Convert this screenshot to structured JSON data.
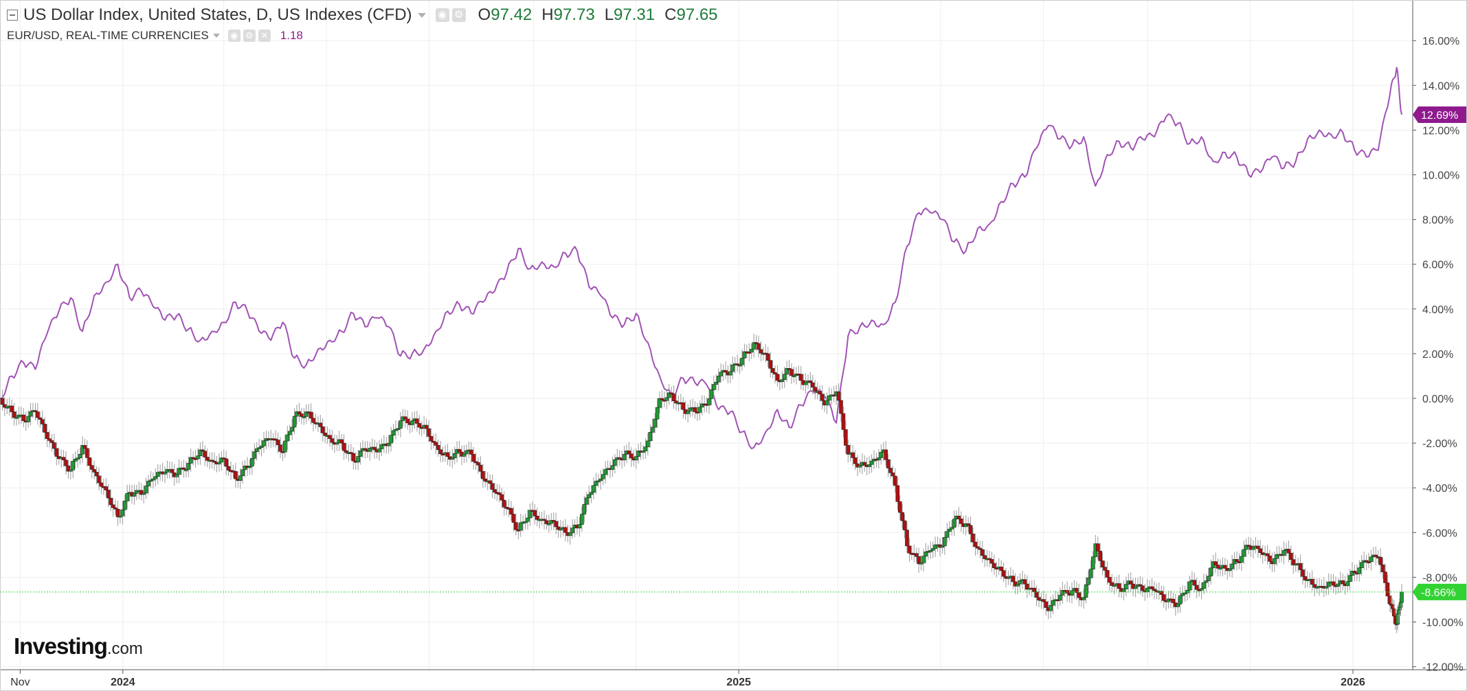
{
  "header": {
    "main_series_title": "US Dollar Index, United States, D, US Indexes (CFD)",
    "ohlc": [
      {
        "label": "O",
        "value": "97.42"
      },
      {
        "label": "H",
        "value": "97.73"
      },
      {
        "label": "L",
        "value": "97.31"
      },
      {
        "label": "C",
        "value": "97.65"
      }
    ],
    "compare_series_title": "EUR/USD, REAL-TIME CURRENCIES",
    "compare_value": "1.18"
  },
  "logo": {
    "brand": "Investing",
    "suffix": ".com"
  },
  "colors": {
    "eurusd_line": "#a052b4",
    "candle_up": "#1f9b32",
    "candle_down": "#b30f0f",
    "last_eurusd_badge": "#8e1a8e",
    "last_dxy_badge": "#32d232",
    "grid": "#eeeeee"
  },
  "chart_data": {
    "type": "line",
    "comparison": "percent change from start",
    "y_axis_ticks": [
      "16.00%",
      "14.00%",
      "12.00%",
      "10.00%",
      "8.00%",
      "6.00%",
      "4.00%",
      "2.00%",
      "0.00%",
      "-2.00%",
      "-4.00%",
      "-6.00%",
      "-8.00%",
      "-10.00%",
      "-12.00%"
    ],
    "ylim": [
      -12,
      17.5
    ],
    "x_axis_labels": [
      "Nov",
      "2024",
      "2025",
      "2026"
    ],
    "x_range": [
      "2023-10-20",
      "2026-01-30"
    ],
    "last_value_labels": {
      "eurusd": "12.69%",
      "dxy": "-8.66%"
    },
    "series": [
      {
        "name": "EUR/USD, REAL-TIME CURRENCIES",
        "style": "line",
        "points": [
          [
            "2023-10-20",
            0.0
          ],
          [
            "2023-10-27",
            1.0
          ],
          [
            "2023-11-03",
            1.6
          ],
          [
            "2023-11-10",
            1.3
          ],
          [
            "2023-11-17",
            2.9
          ],
          [
            "2023-11-24",
            3.9
          ],
          [
            "2023-12-01",
            4.5
          ],
          [
            "2023-12-08",
            3.0
          ],
          [
            "2023-12-15",
            4.6
          ],
          [
            "2023-12-22",
            5.2
          ],
          [
            "2023-12-29",
            6.0
          ],
          [
            "2024-01-05",
            4.5
          ],
          [
            "2024-01-12",
            4.8
          ],
          [
            "2024-01-19",
            4.1
          ],
          [
            "2024-01-26",
            3.5
          ],
          [
            "2024-02-02",
            3.7
          ],
          [
            "2024-02-09",
            3.1
          ],
          [
            "2024-02-16",
            2.6
          ],
          [
            "2024-02-23",
            3.0
          ],
          [
            "2024-03-01",
            3.4
          ],
          [
            "2024-03-08",
            4.3
          ],
          [
            "2024-03-15",
            3.9
          ],
          [
            "2024-03-22",
            3.0
          ],
          [
            "2024-03-29",
            2.6
          ],
          [
            "2024-04-05",
            3.4
          ],
          [
            "2024-04-12",
            1.8
          ],
          [
            "2024-04-19",
            1.5
          ],
          [
            "2024-04-26",
            2.2
          ],
          [
            "2024-05-03",
            2.6
          ],
          [
            "2024-05-10",
            3.0
          ],
          [
            "2024-05-17",
            3.8
          ],
          [
            "2024-05-24",
            3.2
          ],
          [
            "2024-05-31",
            3.6
          ],
          [
            "2024-06-07",
            3.2
          ],
          [
            "2024-06-14",
            1.9
          ],
          [
            "2024-06-21",
            2.0
          ],
          [
            "2024-06-28",
            2.2
          ],
          [
            "2024-07-05",
            3.0
          ],
          [
            "2024-07-12",
            3.9
          ],
          [
            "2024-07-19",
            4.2
          ],
          [
            "2024-07-26",
            3.8
          ],
          [
            "2024-08-02",
            4.3
          ],
          [
            "2024-08-09",
            4.8
          ],
          [
            "2024-08-16",
            5.6
          ],
          [
            "2024-08-23",
            6.7
          ],
          [
            "2024-08-30",
            5.8
          ],
          [
            "2024-09-06",
            6.1
          ],
          [
            "2024-09-13",
            5.9
          ],
          [
            "2024-09-20",
            6.5
          ],
          [
            "2024-09-27",
            6.6
          ],
          [
            "2024-10-04",
            5.0
          ],
          [
            "2024-10-11",
            4.6
          ],
          [
            "2024-10-18",
            3.6
          ],
          [
            "2024-10-25",
            3.3
          ],
          [
            "2024-11-01",
            3.8
          ],
          [
            "2024-11-08",
            2.5
          ],
          [
            "2024-11-15",
            1.0
          ],
          [
            "2024-11-22",
            0.1
          ],
          [
            "2024-11-29",
            0.9
          ],
          [
            "2024-12-06",
            0.7
          ],
          [
            "2024-12-13",
            0.6
          ],
          [
            "2024-12-20",
            -0.5
          ],
          [
            "2024-12-27",
            -0.6
          ],
          [
            "2025-01-03",
            -1.5
          ],
          [
            "2025-01-10",
            -2.2
          ],
          [
            "2025-01-17",
            -1.5
          ],
          [
            "2025-01-24",
            -0.5
          ],
          [
            "2025-01-31",
            -1.3
          ],
          [
            "2025-02-07",
            -0.3
          ],
          [
            "2025-02-14",
            0.3
          ],
          [
            "2025-02-21",
            0.1
          ],
          [
            "2025-02-28",
            -1.1
          ],
          [
            "2025-03-07",
            2.8
          ],
          [
            "2025-03-14",
            3.2
          ],
          [
            "2025-03-21",
            3.5
          ],
          [
            "2025-03-28",
            3.3
          ],
          [
            "2025-04-04",
            4.3
          ],
          [
            "2025-04-11",
            6.8
          ],
          [
            "2025-04-18",
            8.3
          ],
          [
            "2025-04-25",
            8.3
          ],
          [
            "2025-05-02",
            8.0
          ],
          [
            "2025-05-09",
            7.0
          ],
          [
            "2025-05-16",
            6.6
          ],
          [
            "2025-05-23",
            7.6
          ],
          [
            "2025-05-30",
            7.8
          ],
          [
            "2025-06-06",
            8.8
          ],
          [
            "2025-06-13",
            9.6
          ],
          [
            "2025-06-20",
            9.9
          ],
          [
            "2025-06-27",
            11.2
          ],
          [
            "2025-07-04",
            12.2
          ],
          [
            "2025-07-11",
            11.6
          ],
          [
            "2025-07-18",
            11.3
          ],
          [
            "2025-07-25",
            11.7
          ],
          [
            "2025-08-01",
            9.5
          ],
          [
            "2025-08-08",
            10.9
          ],
          [
            "2025-08-15",
            11.5
          ],
          [
            "2025-08-22",
            11.2
          ],
          [
            "2025-08-29",
            11.6
          ],
          [
            "2025-09-05",
            11.7
          ],
          [
            "2025-09-12",
            12.6
          ],
          [
            "2025-09-19",
            12.3
          ],
          [
            "2025-09-26",
            11.4
          ],
          [
            "2025-10-03",
            11.7
          ],
          [
            "2025-10-10",
            10.6
          ],
          [
            "2025-10-17",
            11.0
          ],
          [
            "2025-10-24",
            10.8
          ],
          [
            "2025-10-31",
            10.0
          ],
          [
            "2025-11-07",
            10.1
          ],
          [
            "2025-11-14",
            10.8
          ],
          [
            "2025-11-21",
            10.3
          ],
          [
            "2025-11-28",
            10.6
          ],
          [
            "2025-12-05",
            11.6
          ],
          [
            "2025-12-12",
            12.0
          ],
          [
            "2025-12-19",
            11.8
          ],
          [
            "2025-12-26",
            11.9
          ],
          [
            "2026-01-02",
            11.1
          ],
          [
            "2026-01-09",
            10.8
          ],
          [
            "2026-01-16",
            11.1
          ],
          [
            "2026-01-23",
            13.6
          ],
          [
            "2026-01-27",
            14.8
          ],
          [
            "2026-01-30",
            12.69
          ]
        ]
      },
      {
        "name": "US Dollar Index, United States, D, US Indexes (CFD)",
        "style": "candlestick",
        "points": [
          [
            "2023-10-20",
            0.0
          ],
          [
            "2023-10-27",
            -0.6
          ],
          [
            "2023-11-03",
            -1.0
          ],
          [
            "2023-11-10",
            -0.6
          ],
          [
            "2023-11-17",
            -1.8
          ],
          [
            "2023-11-24",
            -2.7
          ],
          [
            "2023-12-01",
            -3.2
          ],
          [
            "2023-12-08",
            -2.1
          ],
          [
            "2023-12-15",
            -3.3
          ],
          [
            "2023-12-22",
            -4.1
          ],
          [
            "2023-12-29",
            -5.3
          ],
          [
            "2024-01-05",
            -4.2
          ],
          [
            "2024-01-12",
            -4.3
          ],
          [
            "2024-01-19",
            -3.6
          ],
          [
            "2024-01-26",
            -3.3
          ],
          [
            "2024-02-02",
            -3.4
          ],
          [
            "2024-02-09",
            -2.9
          ],
          [
            "2024-02-16",
            -2.3
          ],
          [
            "2024-02-23",
            -2.8
          ],
          [
            "2024-03-01",
            -2.7
          ],
          [
            "2024-03-08",
            -3.6
          ],
          [
            "2024-03-15",
            -3.1
          ],
          [
            "2024-03-22",
            -2.2
          ],
          [
            "2024-03-29",
            -1.8
          ],
          [
            "2024-04-05",
            -2.4
          ],
          [
            "2024-04-12",
            -0.8
          ],
          [
            "2024-04-19",
            -0.6
          ],
          [
            "2024-04-26",
            -1.1
          ],
          [
            "2024-05-03",
            -1.8
          ],
          [
            "2024-05-10",
            -2.0
          ],
          [
            "2024-05-17",
            -2.8
          ],
          [
            "2024-05-24",
            -2.3
          ],
          [
            "2024-05-31",
            -2.4
          ],
          [
            "2024-06-07",
            -2.0
          ],
          [
            "2024-06-14",
            -1.0
          ],
          [
            "2024-06-21",
            -1.0
          ],
          [
            "2024-06-28",
            -1.2
          ],
          [
            "2024-07-05",
            -2.1
          ],
          [
            "2024-07-12",
            -2.6
          ],
          [
            "2024-07-19",
            -2.4
          ],
          [
            "2024-07-26",
            -2.5
          ],
          [
            "2024-08-02",
            -3.6
          ],
          [
            "2024-08-09",
            -4.2
          ],
          [
            "2024-08-16",
            -4.9
          ],
          [
            "2024-08-23",
            -5.9
          ],
          [
            "2024-08-30",
            -5.0
          ],
          [
            "2024-09-06",
            -5.4
          ],
          [
            "2024-09-13",
            -5.5
          ],
          [
            "2024-09-20",
            -6.0
          ],
          [
            "2024-09-27",
            -5.8
          ],
          [
            "2024-10-04",
            -4.3
          ],
          [
            "2024-10-11",
            -3.6
          ],
          [
            "2024-10-18",
            -3.0
          ],
          [
            "2024-10-25",
            -2.5
          ],
          [
            "2024-11-01",
            -2.6
          ],
          [
            "2024-11-08",
            -1.9
          ],
          [
            "2024-11-15",
            0.0
          ],
          [
            "2024-11-22",
            0.2
          ],
          [
            "2024-11-29",
            -0.5
          ],
          [
            "2024-12-06",
            -0.6
          ],
          [
            "2024-12-13",
            -0.3
          ],
          [
            "2024-12-20",
            1.0
          ],
          [
            "2024-12-27",
            1.2
          ],
          [
            "2025-01-03",
            1.8
          ],
          [
            "2025-01-10",
            2.5
          ],
          [
            "2025-01-17",
            2.0
          ],
          [
            "2025-01-24",
            0.8
          ],
          [
            "2025-01-31",
            1.3
          ],
          [
            "2025-02-07",
            0.8
          ],
          [
            "2025-02-14",
            0.5
          ],
          [
            "2025-02-21",
            -0.3
          ],
          [
            "2025-02-28",
            0.3
          ],
          [
            "2025-03-07",
            -2.5
          ],
          [
            "2025-03-14",
            -3.0
          ],
          [
            "2025-03-21",
            -2.8
          ],
          [
            "2025-03-28",
            -2.3
          ],
          [
            "2025-04-04",
            -3.9
          ],
          [
            "2025-04-11",
            -6.6
          ],
          [
            "2025-04-18",
            -7.4
          ],
          [
            "2025-04-25",
            -6.8
          ],
          [
            "2025-05-02",
            -6.6
          ],
          [
            "2025-05-09",
            -5.4
          ],
          [
            "2025-05-16",
            -5.6
          ],
          [
            "2025-05-23",
            -6.7
          ],
          [
            "2025-05-30",
            -7.2
          ],
          [
            "2025-06-06",
            -7.7
          ],
          [
            "2025-06-13",
            -8.2
          ],
          [
            "2025-06-20",
            -8.3
          ],
          [
            "2025-06-27",
            -8.9
          ],
          [
            "2025-07-04",
            -9.5
          ],
          [
            "2025-07-11",
            -8.8
          ],
          [
            "2025-07-18",
            -8.6
          ],
          [
            "2025-07-25",
            -8.9
          ],
          [
            "2025-08-01",
            -6.5
          ],
          [
            "2025-08-08",
            -8.0
          ],
          [
            "2025-08-15",
            -8.5
          ],
          [
            "2025-08-22",
            -8.3
          ],
          [
            "2025-08-29",
            -8.6
          ],
          [
            "2025-09-05",
            -8.6
          ],
          [
            "2025-09-12",
            -9.1
          ],
          [
            "2025-09-19",
            -9.2
          ],
          [
            "2025-09-26",
            -8.2
          ],
          [
            "2025-10-03",
            -8.5
          ],
          [
            "2025-10-10",
            -7.3
          ],
          [
            "2025-10-17",
            -7.6
          ],
          [
            "2025-10-24",
            -7.3
          ],
          [
            "2025-10-31",
            -6.6
          ],
          [
            "2025-11-07",
            -6.9
          ],
          [
            "2025-11-14",
            -7.4
          ],
          [
            "2025-11-21",
            -6.8
          ],
          [
            "2025-11-28",
            -7.4
          ],
          [
            "2025-12-05",
            -8.1
          ],
          [
            "2025-12-12",
            -8.4
          ],
          [
            "2025-12-19",
            -8.2
          ],
          [
            "2025-12-26",
            -8.3
          ],
          [
            "2026-01-02",
            -7.8
          ],
          [
            "2026-01-09",
            -7.3
          ],
          [
            "2026-01-16",
            -7.1
          ],
          [
            "2026-01-23",
            -9.2
          ],
          [
            "2026-01-27",
            -10.1
          ],
          [
            "2026-01-30",
            -8.66
          ]
        ]
      }
    ]
  }
}
